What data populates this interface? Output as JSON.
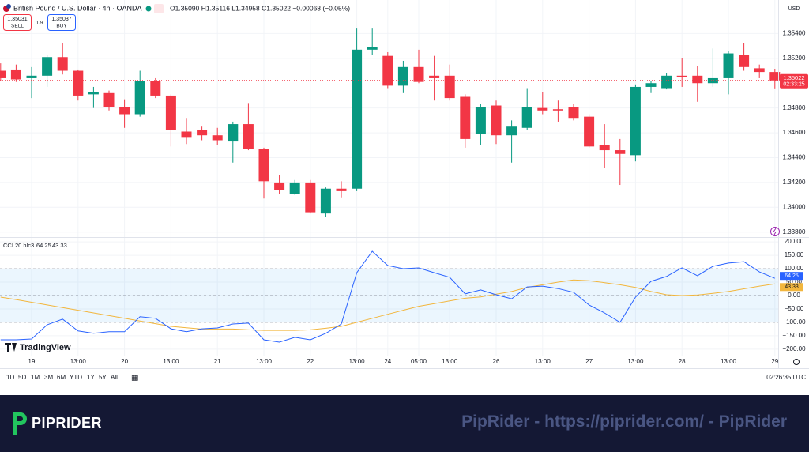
{
  "ui": {
    "symbol": "British Pound / U.S. Dollar · 4h · OANDA",
    "ohlc": "O1.35090 H1.35116 L1.34958 C1.35022 −0.00068 (−0.05%)",
    "sell_price": "1.35031",
    "sell": "SELL",
    "spread": "1.9",
    "buy_price": "1.35037",
    "buy": "BUY",
    "currency": "USD",
    "countdown": "02:33:25",
    "indicator": "CCI 20 hlc3",
    "logo": "TradingView",
    "ranges": [
      "1D",
      "5D",
      "1M",
      "3M",
      "6M",
      "YTD",
      "1Y",
      "5Y",
      "All"
    ],
    "clock": "02:26:35 UTC"
  },
  "banner": {
    "brand": "PIPRIDER",
    "url": "PipRider - https://piprider.com/ - PipRider"
  },
  "chart_data": [
    {
      "type": "candlestick",
      "up_color": "#089981",
      "down_color": "#f23645",
      "grid": true,
      "categories": [
        null,
        null,
        "19",
        null,
        null,
        "13:00",
        null,
        null,
        "20",
        null,
        null,
        "13:00",
        null,
        null,
        "21",
        null,
        null,
        "13:00",
        null,
        null,
        "22",
        null,
        null,
        "13:00",
        null,
        "24",
        null,
        "05:00",
        null,
        "13:00",
        null,
        null,
        "26",
        null,
        null,
        "13:00",
        null,
        null,
        "27",
        null,
        null,
        "13:00",
        null,
        null,
        "28",
        null,
        null,
        "13:00",
        null,
        null,
        "29"
      ],
      "open": [
        1.351,
        1.3511,
        1.3504,
        1.3506,
        1.3521,
        1.351,
        1.3491,
        1.3492,
        1.3481,
        1.3475,
        1.3502,
        1.349,
        1.3461,
        1.3462,
        1.3458,
        1.3453,
        1.3467,
        1.3447,
        1.342,
        1.3411,
        1.342,
        1.3395,
        1.3415,
        1.3415,
        1.3527,
        1.3522,
        1.3498,
        1.3513,
        1.3506,
        1.3506,
        1.3489,
        1.3459,
        1.3482,
        1.3458,
        1.3464,
        1.348,
        1.3479,
        1.3481,
        1.3473,
        1.345,
        1.3446,
        1.3442,
        1.3497,
        1.3496,
        1.3506,
        1.3506,
        1.35,
        1.3504,
        1.3523,
        1.3512,
        1.3509
      ],
      "high": [
        1.3516,
        1.3515,
        1.3513,
        1.3523,
        1.3532,
        1.3511,
        1.3497,
        1.3494,
        1.3487,
        1.351,
        1.3504,
        1.3491,
        1.3472,
        1.3465,
        1.3464,
        1.3469,
        1.3484,
        1.3448,
        1.3426,
        1.3422,
        1.3422,
        1.3416,
        1.3421,
        1.3544,
        1.3544,
        1.3525,
        1.3518,
        1.3527,
        1.3522,
        1.3515,
        1.3491,
        1.3483,
        1.3486,
        1.347,
        1.3496,
        1.3493,
        1.3486,
        1.3483,
        1.3475,
        1.3467,
        1.3455,
        1.3499,
        1.3502,
        1.3508,
        1.352,
        1.3514,
        1.3528,
        1.3526,
        1.3532,
        1.3515,
        1.35116
      ],
      "low": [
        1.3502,
        1.3501,
        1.3488,
        1.3497,
        1.3507,
        1.3486,
        1.348,
        1.3478,
        1.3464,
        1.3473,
        1.3488,
        1.3449,
        1.3451,
        1.3454,
        1.345,
        1.3436,
        1.3446,
        1.3407,
        1.3411,
        1.341,
        1.3395,
        1.3392,
        1.3408,
        1.3413,
        1.3523,
        1.3496,
        1.3492,
        1.35,
        1.3486,
        1.3486,
        1.3448,
        1.345,
        1.3451,
        1.3436,
        1.3462,
        1.3475,
        1.3469,
        1.347,
        1.3448,
        1.3432,
        1.3418,
        1.3437,
        1.3492,
        1.3495,
        1.3497,
        1.3485,
        1.3497,
        1.3491,
        1.351,
        1.3504,
        1.34958
      ],
      "close": [
        1.3504,
        1.3503,
        1.3506,
        1.3521,
        1.351,
        1.349,
        1.3493,
        1.3481,
        1.3475,
        1.3502,
        1.349,
        1.3462,
        1.3456,
        1.3458,
        1.3454,
        1.3467,
        1.3447,
        1.3421,
        1.3414,
        1.342,
        1.3396,
        1.3415,
        1.3413,
        1.3527,
        1.3529,
        1.3498,
        1.3513,
        1.3501,
        1.3504,
        1.3488,
        1.3455,
        1.3481,
        1.3458,
        1.3465,
        1.3481,
        1.3478,
        1.3478,
        1.3472,
        1.3449,
        1.3446,
        1.3443,
        1.3497,
        1.35,
        1.3506,
        1.3505,
        1.35,
        1.3504,
        1.3524,
        1.3513,
        1.3509,
        1.35022
      ],
      "ylim": [
        1.3376,
        1.3567
      ],
      "yticks": [
        {
          "value": 1.338,
          "label": "1.33800"
        },
        {
          "value": 1.34,
          "label": "1.34000"
        },
        {
          "value": 1.342,
          "label": "1.34200"
        },
        {
          "value": 1.344,
          "label": "1.34400"
        },
        {
          "value": 1.346,
          "label": "1.34600"
        },
        {
          "value": 1.348,
          "label": "1.34800"
        },
        {
          "value": 1.352,
          "label": "1.35200"
        },
        {
          "value": 1.354,
          "label": "1.35400"
        }
      ]
    },
    {
      "type": "line",
      "grid": true,
      "series": [
        {
          "color": "#2962ff",
          "values": [
            -165,
            -165,
            -162,
            -109,
            -88,
            -132,
            -141,
            -135,
            -135,
            -79,
            -85,
            -124,
            -135,
            -124,
            -121,
            -106,
            -103,
            -165,
            -174,
            -156,
            -165,
            -141,
            -106,
            85,
            165,
            112,
            100,
            103,
            85,
            68,
            6,
            21,
            3,
            -12,
            32,
            35,
            26,
            12,
            -35,
            -65,
            -100,
            -6,
            53,
            71,
            103,
            74,
            109,
            121,
            126,
            88,
            64.25
          ]
        },
        {
          "color": "#f2b63d",
          "values": [
            -6,
            -15,
            -25,
            -35,
            -45,
            -55,
            -65,
            -75,
            -85,
            -95,
            -105,
            -115,
            -120,
            -125,
            -125,
            -125,
            -128,
            -130,
            -130,
            -130,
            -128,
            -122,
            -115,
            -100,
            -85,
            -70,
            -55,
            -40,
            -30,
            -20,
            -10,
            -5,
            5,
            15,
            30,
            40,
            50,
            58,
            55,
            48,
            40,
            30,
            15,
            3,
            0,
            2,
            8,
            15,
            25,
            35,
            43.33
          ]
        }
      ],
      "hlines": [
        100,
        0,
        -100
      ],
      "ylim": [
        -224,
        218
      ],
      "yticks": [
        {
          "value": 200,
          "label": "200.00"
        },
        {
          "value": 150,
          "label": "150.00"
        },
        {
          "value": 100,
          "label": "100.00"
        },
        {
          "value": 50,
          "label": "50.00"
        },
        {
          "value": 0,
          "label": "0.00"
        },
        {
          "value": -50,
          "label": "−50.00"
        },
        {
          "value": -100,
          "label": "−100.00"
        },
        {
          "value": -150,
          "label": "−150.00"
        },
        {
          "value": -200,
          "label": "−200.00"
        }
      ]
    }
  ]
}
